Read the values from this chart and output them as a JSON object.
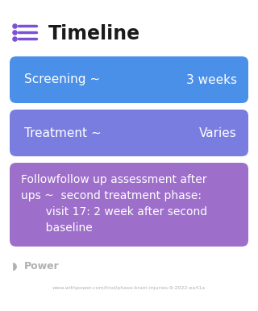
{
  "title": "Timeline",
  "background_color": "#ffffff",
  "title_color": "#1a1a1a",
  "title_fontsize": 17,
  "icon_color": "#7b52d4",
  "cards": [
    {
      "label_left": "Screening ~",
      "label_right": "3 weeks",
      "color": "#4a8fe8",
      "text_color": "#ffffff",
      "multiline": false,
      "fontsize": 11
    },
    {
      "label_left": "Treatment ~",
      "label_right": "Varies",
      "color": "#7a7de0",
      "text_color": "#ffffff",
      "multiline": false,
      "fontsize": 11
    },
    {
      "label_left": "Followfollow up assessment after\nups ~  second treatment phase:\n       visit 17: 2 week after second\n       baseline",
      "label_right": "",
      "color": "#9e6ecb",
      "text_color": "#ffffff",
      "multiline": true,
      "fontsize": 10
    }
  ],
  "footer_logo_text": "Power",
  "footer_url": "www.withpower.com/trial/phase-brain-injuries-9-2022-ea41a",
  "footer_color": "#b0b0b0",
  "footer_fontsize": 7,
  "url_fontsize": 4.5
}
